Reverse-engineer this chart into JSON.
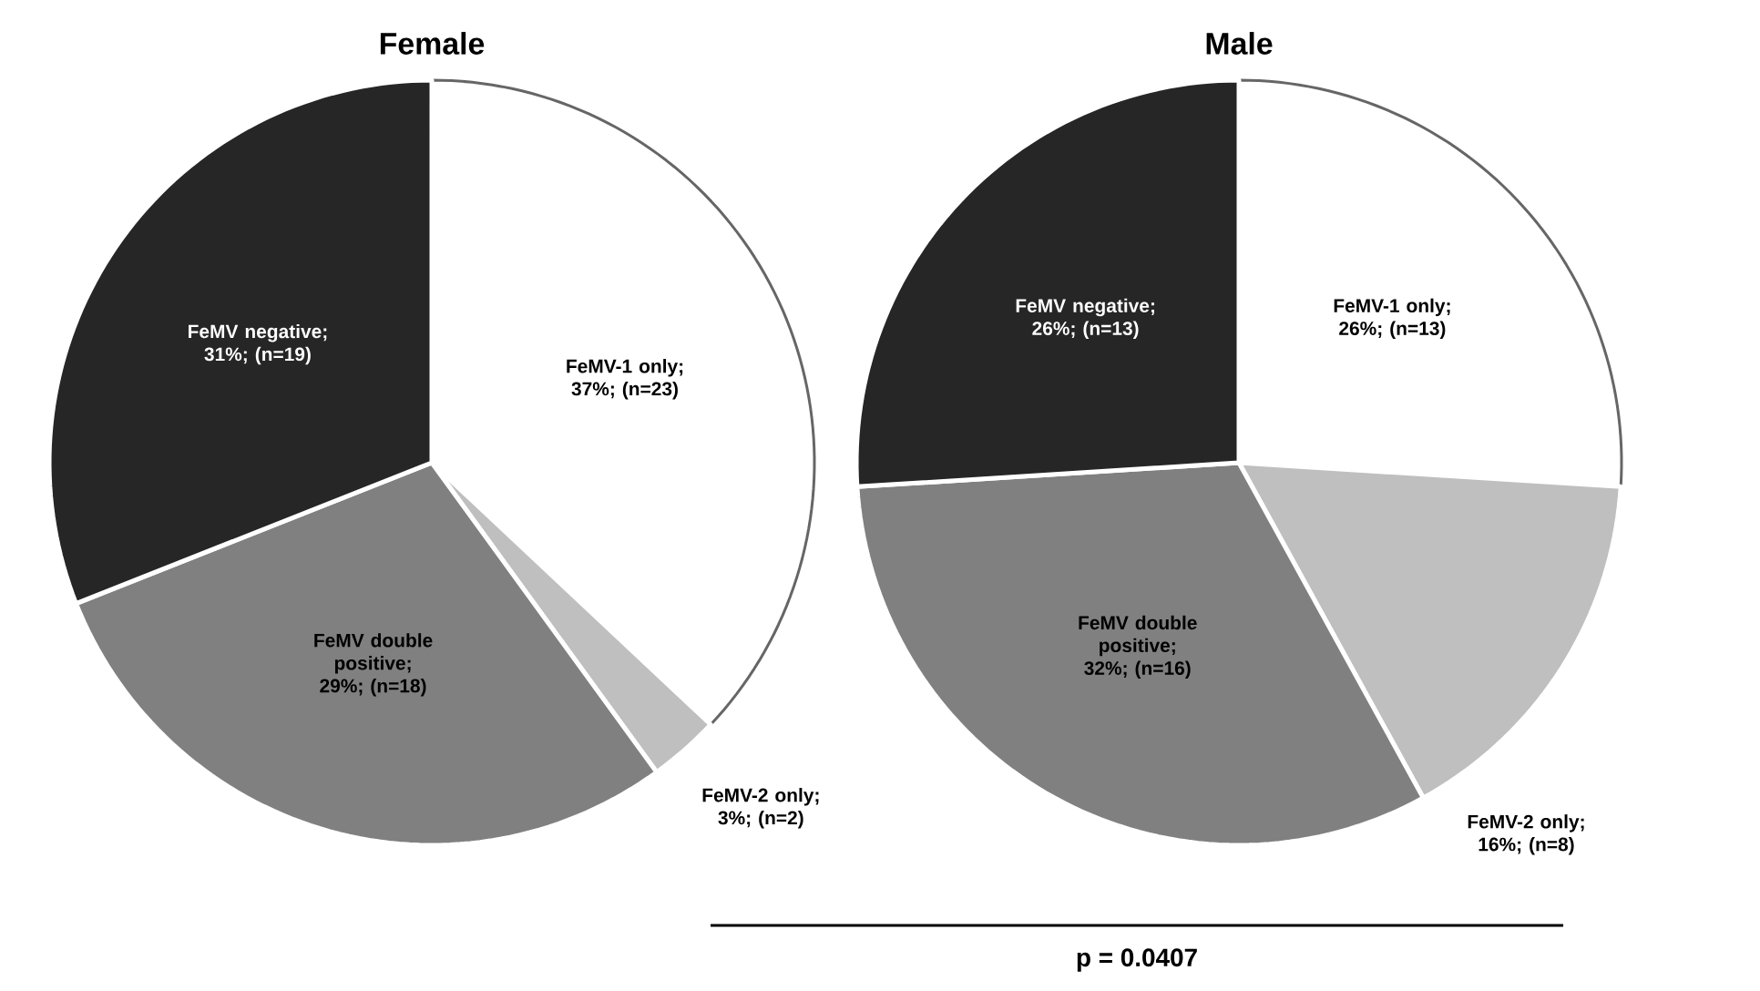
{
  "chart_data": [
    {
      "type": "pie",
      "title": "Female",
      "categories": [
        "FeMV-1 only; 37%; (n=23)",
        "FeMV-2 only; 3%; (n=2)",
        "FeMV double positive; 29%; (n=18)",
        "FeMV negative; 31%; (n=19)"
      ],
      "values": [
        37,
        3,
        29,
        31
      ],
      "colors": [
        "#ffffff",
        "#bfbfbf",
        "#808080",
        "#262626"
      ]
    },
    {
      "type": "pie",
      "title": "Male",
      "categories": [
        "FeMV-1 only; 26%; (n=13)",
        "FeMV-2 only; 16%; (n=8)",
        "FeMV double positive; 32%; (n=16)",
        "FeMV negative; 26%; (n=13)"
      ],
      "values": [
        26,
        16,
        32,
        26
      ],
      "colors": [
        "#ffffff",
        "#bfbfbf",
        "#808080",
        "#262626"
      ],
      "annotations": [
        "p = 0.0407"
      ]
    }
  ]
}
